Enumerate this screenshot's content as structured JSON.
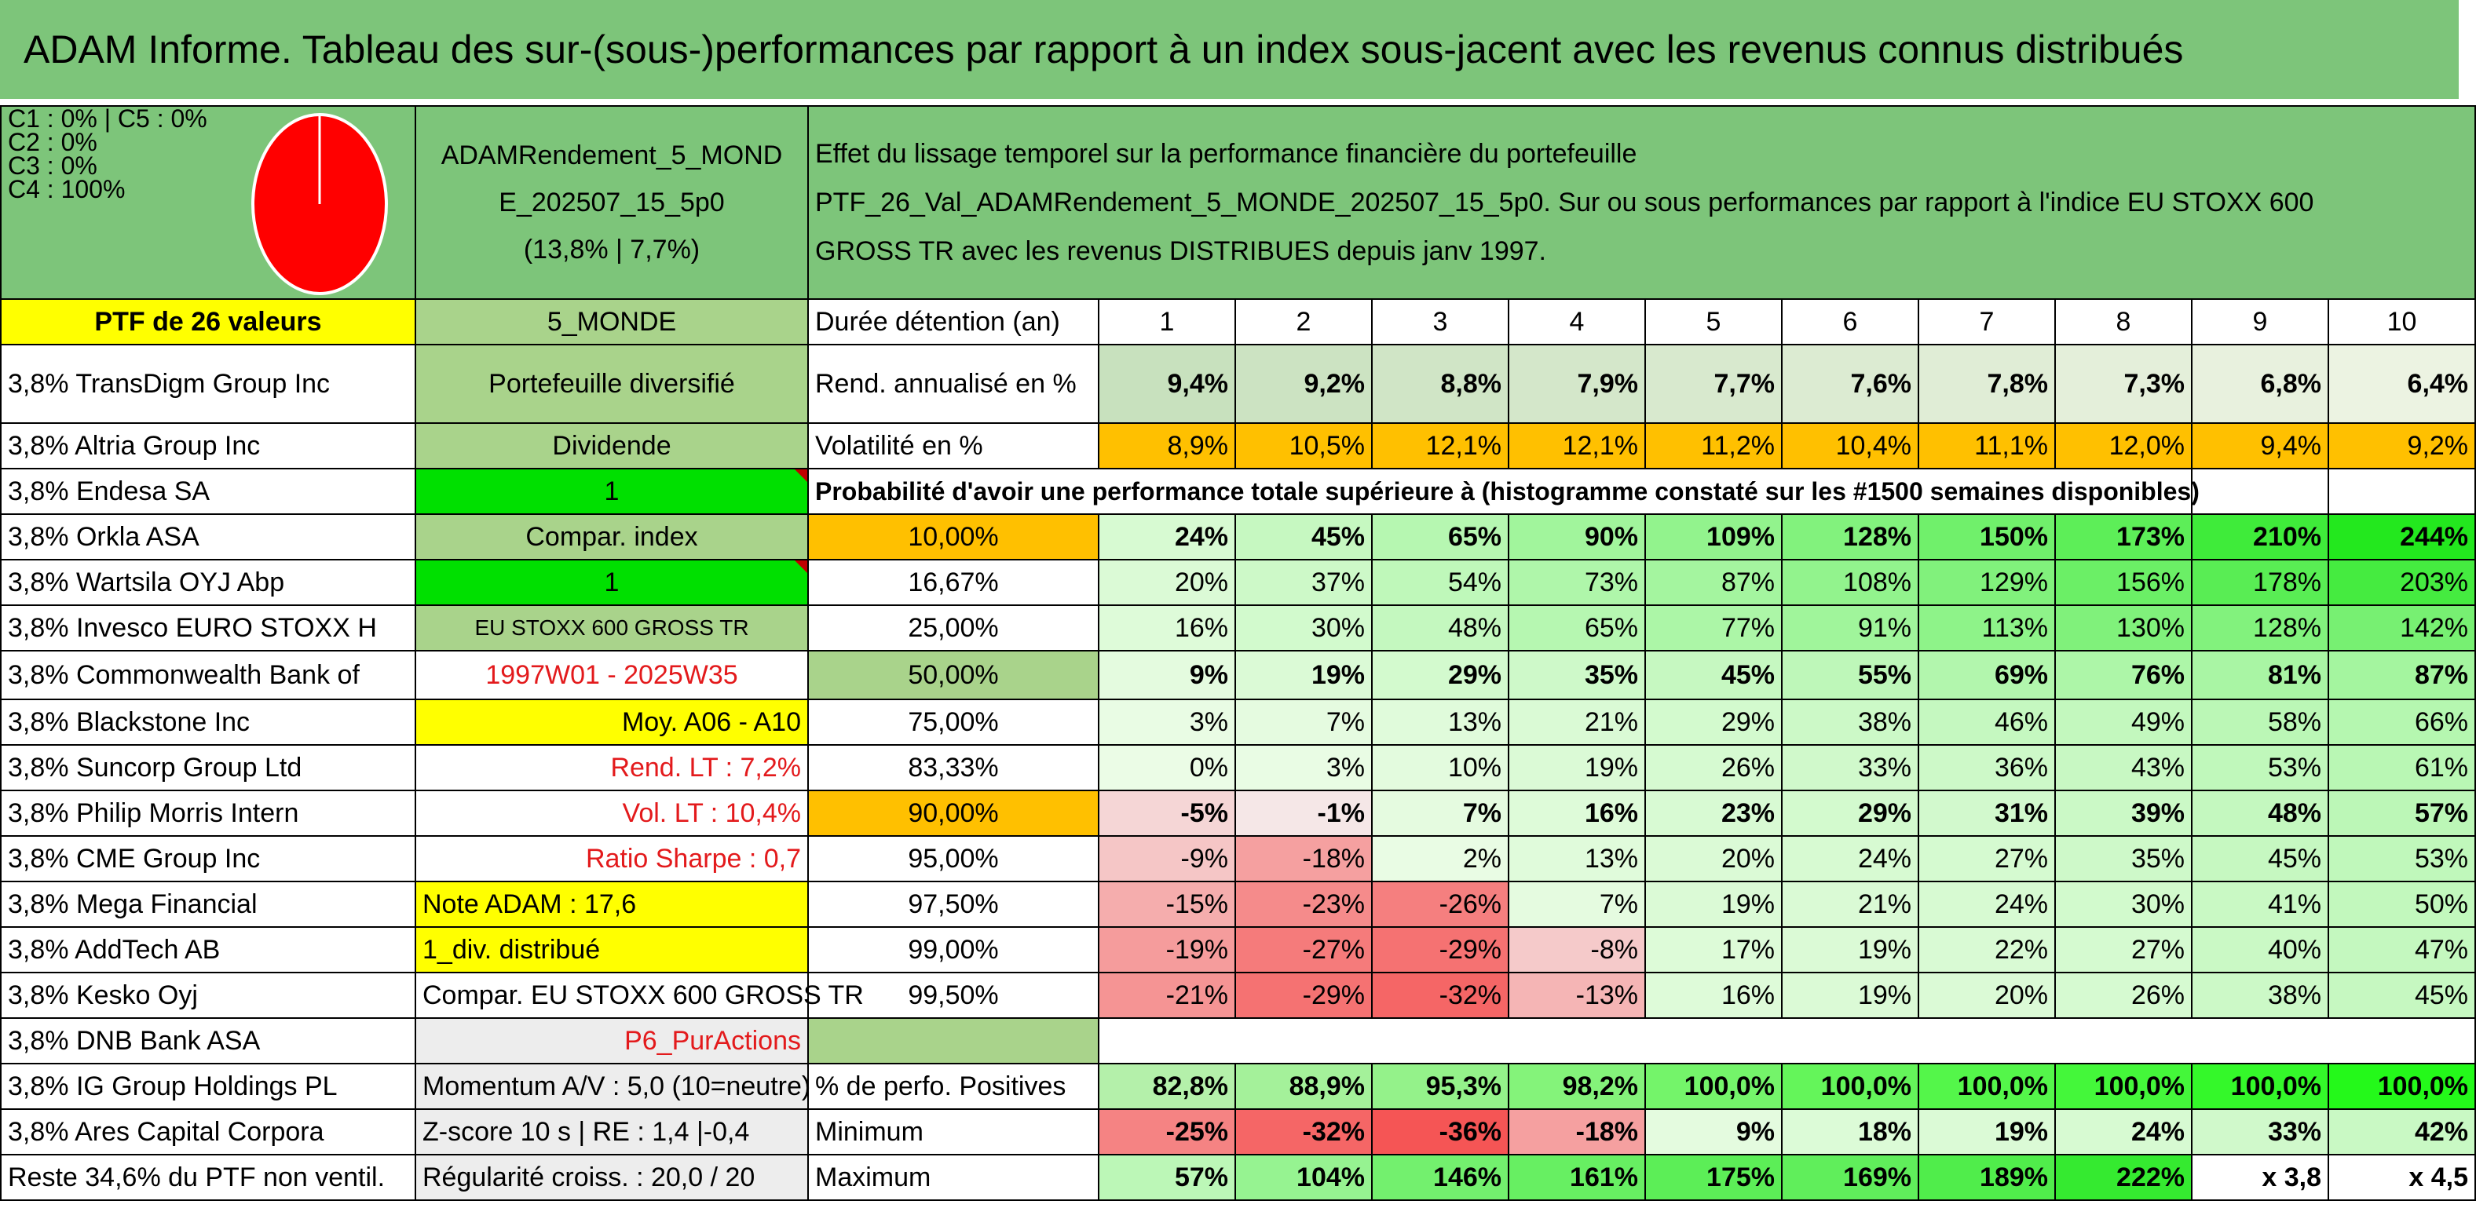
{
  "title": "ADAM Informe. Tableau des sur-(sous-)performances par rapport à un index sous-jacent avec les revenus connus distribués",
  "classes": [
    "C1 : 0% | C5 : 0%",
    "C2 : 0%",
    "C3 : 0%",
    "C4 : 100%"
  ],
  "fund": {
    "name_line1": "ADAMRendement_5_MOND",
    "name_line2": "E_202507_15_5p0",
    "stats": "(13,8% | 7,7%)"
  },
  "description": {
    "line1": "Effet du lissage temporel sur la performance financière du portefeuille",
    "line2": "PTF_26_Val_ADAMRendement_5_MONDE_202507_15_5p0. Sur ou sous performances par rapport à l'indice EU STOXX 600",
    "line3": "GROSS TR avec les revenus DISTRIBUES depuis janv 1997."
  },
  "ptf_header": "PTF de 26 valeurs",
  "universe": "5_MONDE",
  "duration_label": "Durée détention (an)",
  "years": [
    "1",
    "2",
    "3",
    "4",
    "5",
    "6",
    "7",
    "8",
    "9",
    "10"
  ],
  "holdings": [
    "3,8% TransDigm Group Inc",
    "3,8% Altria Group Inc",
    "3,8% Endesa SA",
    "3,8% Orkla ASA",
    "3,8% Wartsila OYJ Abp",
    "3,8% Invesco EURO STOXX H",
    "3,8% Commonwealth Bank of",
    "3,8% Blackstone Inc",
    "3,8% Suncorp Group Ltd",
    "3,8% Philip Morris Intern",
    "3,8% CME Group Inc",
    "3,8% Mega Financial",
    "3,8% AddTech AB",
    "3,8% Kesko Oyj",
    "3,8% DNB Bank ASA",
    "3,8% IG Group Holdings PL",
    "3,8% Ares Capital Corpora",
    "Reste 34,6% du PTF non ventil."
  ],
  "info": [
    "Portefeuille diversifié",
    "Dividende",
    "1",
    "Compar. index",
    "1",
    "EU STOXX 600 GROSS TR",
    "1997W01 - 2025W35",
    "Moy. A06 - A10",
    "Rend. LT : 7,2%",
    "Vol. LT : 10,4%",
    "Ratio Sharpe : 0,7",
    "Note ADAM : 17,6",
    "1_div. distribué",
    "Compar. EU STOXX 600 GROSS TR",
    "P6_PurActions",
    "Momentum A/V : 5,0 (10=neutre)",
    "Z-score 10 s | RE : 1,4 |-0,4",
    "Régularité croiss. : 20,0 / 20"
  ],
  "rend": {
    "label": "Rend. annualisé en %",
    "values": [
      "9,4%",
      "9,2%",
      "8,8%",
      "7,9%",
      "7,7%",
      "7,6%",
      "7,8%",
      "7,3%",
      "6,8%",
      "6,4%"
    ]
  },
  "vol": {
    "label": "Volatilité en %",
    "values": [
      "8,9%",
      "10,5%",
      "12,1%",
      "12,1%",
      "11,2%",
      "10,4%",
      "11,1%",
      "12,0%",
      "9,4%",
      "9,2%"
    ]
  },
  "proba_title": "Probabilité d'avoir une performance totale supérieure à (histogramme constaté sur les #1500 semaines disponibles)",
  "quantiles": [
    {
      "q": "10,00%",
      "v": [
        "24%",
        "45%",
        "65%",
        "90%",
        "109%",
        "128%",
        "150%",
        "173%",
        "210%",
        "244%"
      ]
    },
    {
      "q": "16,67%",
      "v": [
        "20%",
        "37%",
        "54%",
        "73%",
        "87%",
        "108%",
        "129%",
        "156%",
        "178%",
        "203%"
      ]
    },
    {
      "q": "25,00%",
      "v": [
        "16%",
        "30%",
        "48%",
        "65%",
        "77%",
        "91%",
        "113%",
        "130%",
        "128%",
        "142%"
      ]
    },
    {
      "q": "50,00%",
      "v": [
        "9%",
        "19%",
        "29%",
        "35%",
        "45%",
        "55%",
        "69%",
        "76%",
        "81%",
        "87%"
      ]
    },
    {
      "q": "75,00%",
      "v": [
        "3%",
        "7%",
        "13%",
        "21%",
        "29%",
        "38%",
        "46%",
        "49%",
        "58%",
        "66%"
      ]
    },
    {
      "q": "83,33%",
      "v": [
        "0%",
        "3%",
        "10%",
        "19%",
        "26%",
        "33%",
        "36%",
        "43%",
        "53%",
        "61%"
      ]
    },
    {
      "q": "90,00%",
      "v": [
        "-5%",
        "-1%",
        "7%",
        "16%",
        "23%",
        "29%",
        "31%",
        "39%",
        "48%",
        "57%"
      ]
    },
    {
      "q": "95,00%",
      "v": [
        "-9%",
        "-18%",
        "2%",
        "13%",
        "20%",
        "24%",
        "27%",
        "35%",
        "45%",
        "53%"
      ]
    },
    {
      "q": "97,50%",
      "v": [
        "-15%",
        "-23%",
        "-26%",
        "7%",
        "19%",
        "21%",
        "24%",
        "30%",
        "41%",
        "50%"
      ]
    },
    {
      "q": "99,00%",
      "v": [
        "-19%",
        "-27%",
        "-29%",
        "-8%",
        "17%",
        "19%",
        "22%",
        "27%",
        "40%",
        "47%"
      ]
    },
    {
      "q": "99,50%",
      "v": [
        "-21%",
        "-29%",
        "-32%",
        "-13%",
        "16%",
        "19%",
        "20%",
        "26%",
        "38%",
        "45%"
      ]
    }
  ],
  "pos": {
    "label": "% de perfo. Positives",
    "values": [
      "82,8%",
      "88,9%",
      "95,3%",
      "98,2%",
      "100,0%",
      "100,0%",
      "100,0%",
      "100,0%",
      "100,0%",
      "100,0%"
    ]
  },
  "min": {
    "label": "Minimum",
    "values": [
      "-25%",
      "-32%",
      "-36%",
      "-18%",
      "9%",
      "18%",
      "19%",
      "24%",
      "33%",
      "42%"
    ]
  },
  "max": {
    "label": "Maximum",
    "values": [
      "57%",
      "104%",
      "146%",
      "161%",
      "175%",
      "169%",
      "189%",
      "222%",
      "x 3,8",
      "x 4,5"
    ]
  }
}
